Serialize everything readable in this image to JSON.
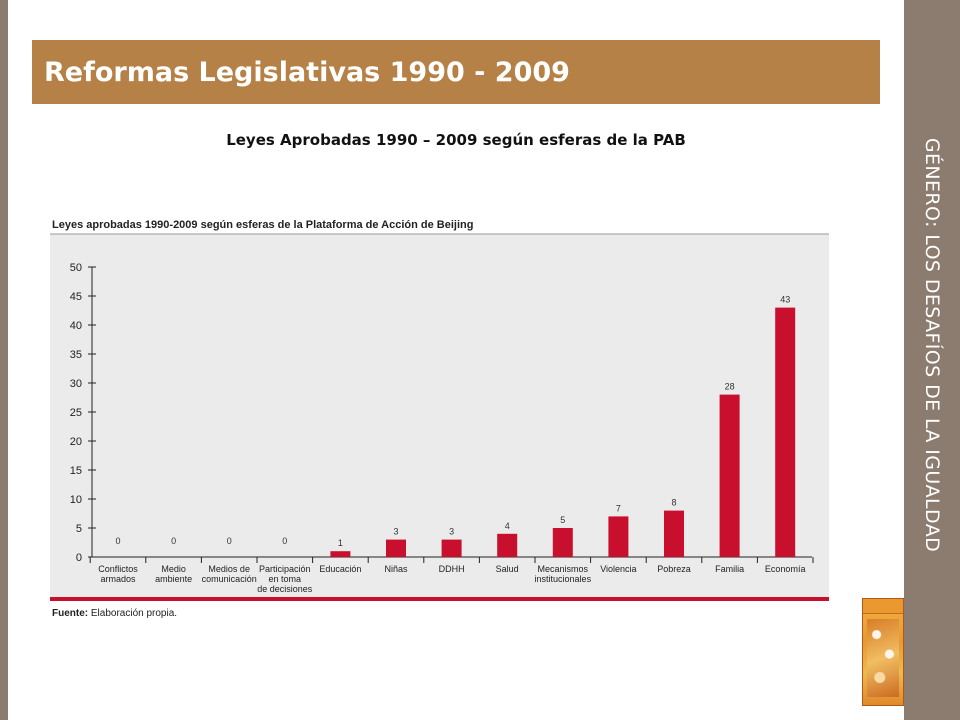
{
  "slide": {
    "title": "Reformas Legislativas 1990 - 2009",
    "subtitle": "Leyes Aprobadas 1990 – 2009 según esferas de la PAB",
    "side_title": "GÉNERO: LOS DESAFÍOS DE LA IGUALDAD"
  },
  "colors": {
    "band": "#8c7b6f",
    "title_bar": "#b68146",
    "bar": "#c8102e",
    "panel": "#ebebeb"
  },
  "book_icon": "book-cover-icon",
  "chart_data": {
    "type": "bar",
    "title": "Leyes aprobadas 1990-2009 según esferas de la Plataforma de Acción de Beijing",
    "categories": [
      [
        "Conflictos",
        "armados"
      ],
      [
        "Medio",
        "ambiente"
      ],
      [
        "Medios de",
        "comunicación"
      ],
      [
        "Participación",
        "en toma",
        "de decisiones"
      ],
      [
        "Educación"
      ],
      [
        "Niñas"
      ],
      [
        "DDHH"
      ],
      [
        "Salud"
      ],
      [
        "Mecanismos",
        "institucionales"
      ],
      [
        "Violencia"
      ],
      [
        "Pobreza"
      ],
      [
        "Familia"
      ],
      [
        "Economía"
      ]
    ],
    "values": [
      0,
      0,
      0,
      0,
      1,
      3,
      3,
      4,
      5,
      7,
      8,
      28,
      43
    ],
    "yticks": [
      0,
      5,
      10,
      15,
      20,
      25,
      30,
      35,
      40,
      45,
      50
    ],
    "ylim": [
      0,
      50
    ],
    "xlabel": "",
    "ylabel": "",
    "grid": false,
    "source_label": "Fuente:",
    "source_text": "Elaboración propia."
  }
}
